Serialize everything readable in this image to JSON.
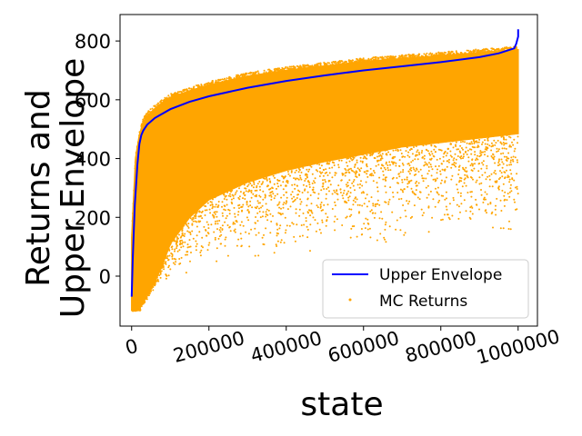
{
  "chart_data": {
    "type": "scatter",
    "title": "",
    "xlabel": "state",
    "ylabel_lines": [
      "Returns and",
      "Upper Envelope"
    ],
    "xlim": [
      -30000,
      1050000
    ],
    "ylim": [
      -170,
      890
    ],
    "xticks": [
      0,
      200000,
      400000,
      600000,
      800000,
      1000000
    ],
    "xtick_labels": [
      "0",
      "200000",
      "400000",
      "600000",
      "800000",
      "1000000"
    ],
    "xtick_rotation_deg": -15,
    "yticks": [
      0,
      200,
      400,
      600,
      800
    ],
    "ytick_labels": [
      "0",
      "200",
      "400",
      "600",
      "800"
    ],
    "grid": false,
    "legend_position": "lower-right",
    "colors": {
      "envelope": "#0000ff",
      "returns": "#ffa500"
    },
    "series": [
      {
        "name": "Upper Envelope",
        "kind": "line",
        "x": [
          0,
          3000,
          8000,
          15000,
          20000,
          25000,
          30000,
          40000,
          60000,
          100000,
          150000,
          200000,
          300000,
          400000,
          500000,
          600000,
          700000,
          800000,
          900000,
          950000,
          990000,
          995000,
          1000000,
          1000000
        ],
        "y": [
          -70,
          60,
          240,
          380,
          450,
          480,
          495,
          515,
          538,
          568,
          593,
          612,
          641,
          664,
          683,
          700,
          714,
          728,
          745,
          758,
          775,
          790,
          815,
          840
        ]
      },
      {
        "name": "MC Returns",
        "kind": "scatter-band",
        "x": [
          0,
          10000,
          20000,
          30000,
          40000,
          60000,
          80000,
          100000,
          150000,
          200000,
          300000,
          400000,
          500000,
          600000,
          700000,
          800000,
          900000,
          1000000
        ],
        "y_high": [
          130,
          400,
          480,
          525,
          545,
          570,
          590,
          608,
          630,
          650,
          680,
          700,
          715,
          730,
          740,
          750,
          760,
          770
        ],
        "y_low_dense": [
          -115,
          -110,
          -105,
          -90,
          -60,
          -20,
          40,
          110,
          200,
          260,
          320,
          360,
          390,
          415,
          440,
          455,
          470,
          485
        ],
        "y_min_sparse": [
          -120,
          -120,
          -115,
          -100,
          -80,
          -40,
          -20,
          -10,
          0,
          20,
          40,
          50,
          70,
          90,
          110,
          130,
          130,
          130
        ]
      }
    ]
  }
}
